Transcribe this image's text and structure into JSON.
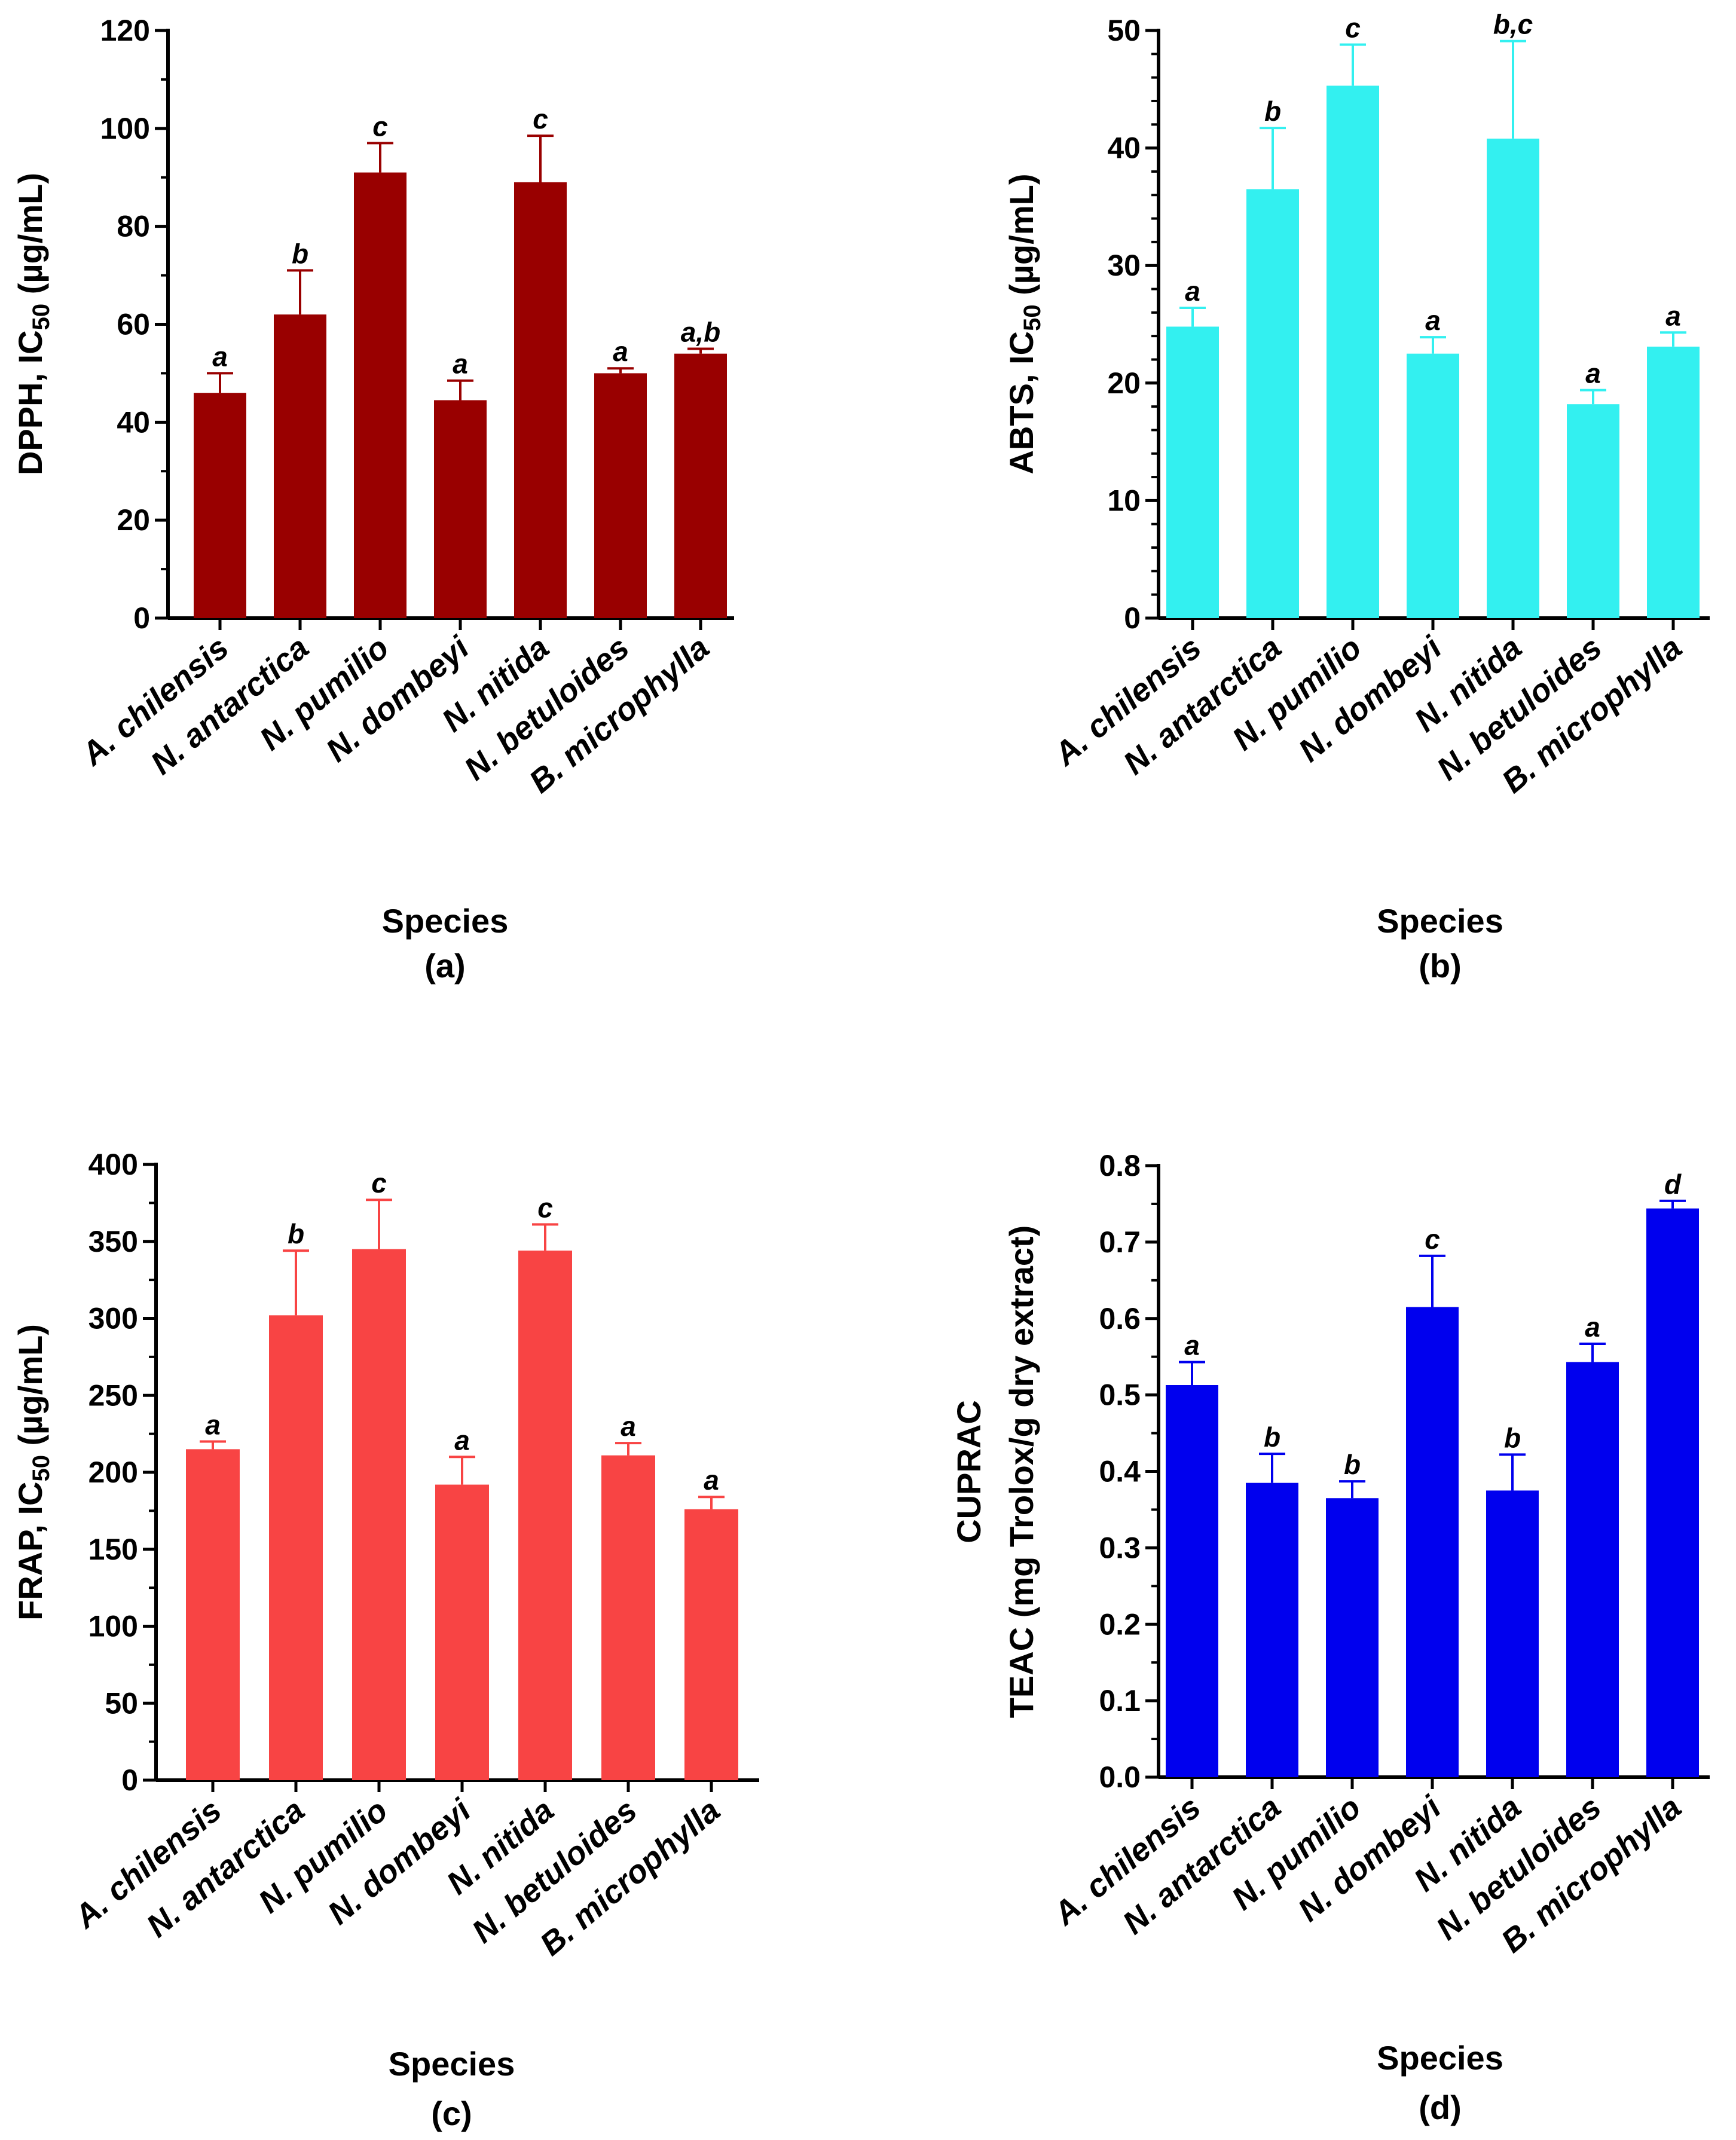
{
  "chart_data": [
    {
      "type": "bar",
      "panel": "(a)",
      "color": "#990000",
      "ylabel": [
        "DPPH, IC",
        "50",
        " (µg/mL)"
      ],
      "xlabel": "Species",
      "ylim": [
        0,
        120
      ],
      "yticks": [
        "0",
        "20",
        "40",
        "60",
        "80",
        "100",
        "120"
      ],
      "categories": [
        "A. chilensis",
        "N. antarctica",
        "N. pumilio",
        "N. dombeyi",
        "N. nitida",
        "N. betuloides",
        "B. microphylla"
      ],
      "values": [
        46,
        62,
        91,
        44.5,
        89,
        50,
        54
      ],
      "errors": [
        4,
        9,
        6,
        4,
        9.5,
        1,
        1
      ],
      "letters": [
        "a",
        "b",
        "c",
        "a",
        "c",
        "a",
        "a,b"
      ]
    },
    {
      "type": "bar",
      "panel": "(b)",
      "color": "#33f0f0",
      "ylabel": [
        "ABTS, IC",
        "50",
        " (µg/mL)"
      ],
      "xlabel": "Species",
      "ylim": [
        0,
        50
      ],
      "yticks": [
        "0",
        "10",
        "20",
        "30",
        "40",
        "50"
      ],
      "categories": [
        "A. chilensis",
        "N. antarctica",
        "N. pumilio",
        "N. dombeyi",
        "N. nitida",
        "N. betuloides",
        "B. microphylla"
      ],
      "values": [
        24.8,
        36.5,
        45.3,
        22.5,
        40.8,
        18.2,
        23.1
      ],
      "errors": [
        1.6,
        5.2,
        3.5,
        1.4,
        8.3,
        1.2,
        1.2
      ],
      "letters": [
        "a",
        "b",
        "c",
        "a",
        "b,c",
        "a",
        "a"
      ]
    },
    {
      "type": "bar",
      "panel": "(c)",
      "color": "#f84444",
      "ylabel": [
        "FRAP,  IC",
        "50",
        " (µg/mL)"
      ],
      "xlabel": "Species",
      "ylim": [
        0,
        400
      ],
      "yticks": [
        "0",
        "50",
        "100",
        "150",
        "200",
        "250",
        "300",
        "350",
        "400"
      ],
      "categories": [
        "A. chilensis",
        "N. antarctica",
        "N. pumilio",
        "N. dombeyi",
        "N. nitida",
        "N. betuloides",
        "B. microphylla"
      ],
      "values": [
        215,
        302,
        345,
        192,
        344,
        211,
        176
      ],
      "errors": [
        5,
        42,
        32,
        18,
        17,
        8,
        8
      ],
      "letters": [
        "a",
        "b",
        "c",
        "a",
        "c",
        "a",
        "a"
      ]
    },
    {
      "type": "bar",
      "panel": "(d)",
      "color": "#0000ee",
      "ylabel": [
        "CUPRAC",
        "TEAC (mg Trolox/g dry extract)"
      ],
      "xlabel": "Species",
      "ylim": [
        0,
        0.8
      ],
      "yticks": [
        "0.0",
        "0.1",
        "0.2",
        "0.3",
        "0.4",
        "0.5",
        "0.6",
        "0.7",
        "0.8"
      ],
      "categories": [
        "A. chilensis",
        "N. antarctica",
        "N. pumilio",
        "N. dombeyi",
        "N. nitida",
        "N. betuloides",
        "B. microphylla"
      ],
      "values": [
        0.513,
        0.385,
        0.365,
        0.615,
        0.375,
        0.543,
        0.744
      ],
      "errors": [
        0.03,
        0.038,
        0.022,
        0.067,
        0.047,
        0.024,
        0.01
      ],
      "letters": [
        "a",
        "b",
        "b",
        "c",
        "b",
        "a",
        "d"
      ]
    }
  ]
}
